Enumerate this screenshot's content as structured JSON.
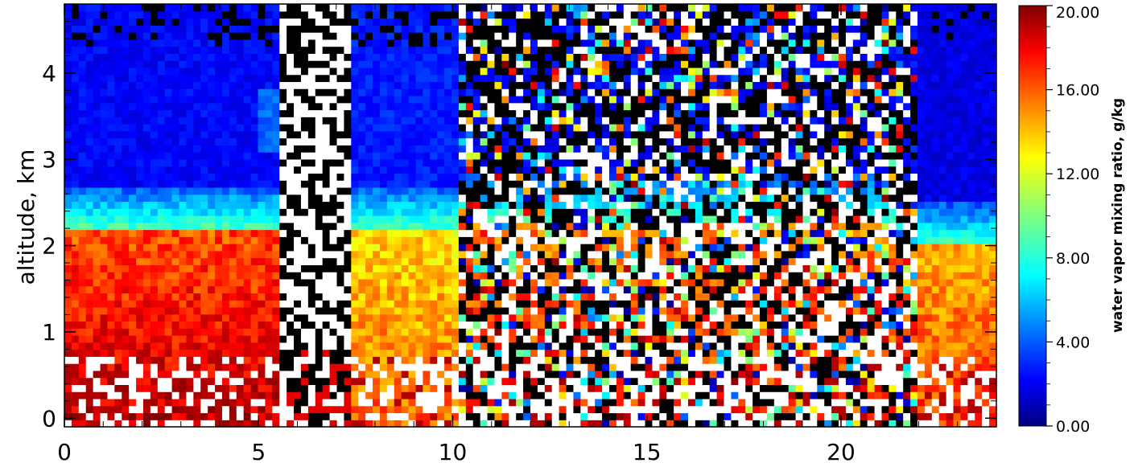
{
  "chart_data": {
    "type": "heatmap",
    "title": "",
    "xlabel": "",
    "ylabel": "altitude, km",
    "xlim": [
      0,
      24
    ],
    "ylim": [
      -0.1,
      4.8
    ],
    "x_ticks": [
      0,
      5,
      10,
      15,
      20
    ],
    "x_tick_labels": [
      "0",
      "5",
      "10",
      "15",
      "20"
    ],
    "y_ticks": [
      0,
      1,
      2,
      3,
      4
    ],
    "y_tick_labels": [
      "0",
      "1",
      "2",
      "3",
      "4"
    ],
    "colorbar": {
      "label": "water vapor mixing ratio, g/kg",
      "range": [
        0,
        20
      ],
      "ticks": [
        0,
        4,
        8,
        12,
        16,
        20
      ],
      "tick_labels": [
        "0.00",
        "4.00",
        "8.00",
        "12.00",
        "16.00",
        "20.00"
      ],
      "colormap": "jet"
    },
    "missing_color_1": "#000000",
    "missing_color_2": "#ffffff",
    "field_summary": [
      {
        "x_range": [
          0,
          5.6
        ],
        "boundary_layer_top_km": 2.2,
        "mixed_layer_value_gkg": 16,
        "free_troposphere_gkg": 2.5,
        "moist_layer_3_to_4km_gkg": 6
      },
      {
        "x_range": [
          5.6,
          7.3
        ],
        "note": "no data"
      },
      {
        "x_range": [
          7.3,
          10.2
        ],
        "boundary_layer_top_km": 2.2,
        "mixed_layer_value_gkg": 13,
        "free_troposphere_gkg": 3
      },
      {
        "x_range": [
          10.2,
          22
        ],
        "note": "noisy / partial data",
        "boundary_layer_top_km": 2.3
      },
      {
        "x_range": [
          22,
          24
        ],
        "boundary_layer_top_km": 2.0,
        "mixed_layer_value_gkg": 14,
        "free_troposphere_gkg": 2
      }
    ]
  }
}
